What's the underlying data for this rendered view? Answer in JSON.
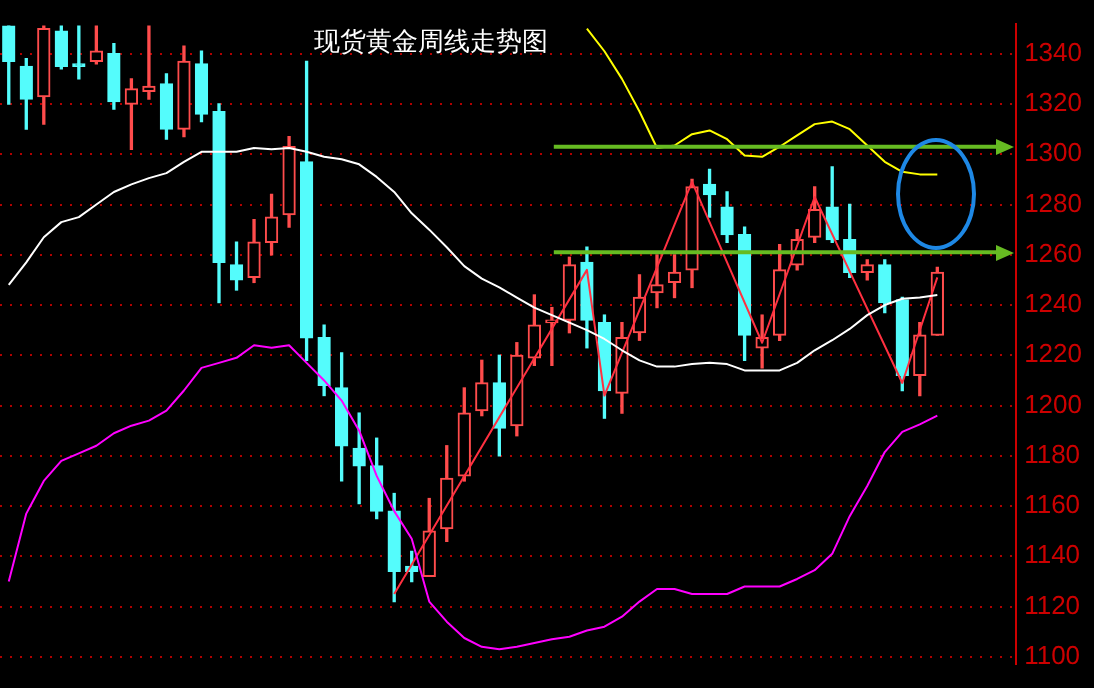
{
  "chart_data": {
    "type": "candlestick",
    "title": "现货黄金周线走势图",
    "categories": [
      null,
      null,
      null,
      null,
      null,
      null,
      null,
      null,
      null,
      null,
      null,
      null,
      null,
      null,
      null,
      null,
      null,
      null,
      null,
      null,
      null,
      null,
      null,
      null,
      null,
      null,
      null,
      null,
      null,
      null,
      null,
      null,
      null,
      null,
      null,
      null,
      null,
      null,
      null,
      null,
      null,
      null,
      null,
      null,
      null,
      null,
      null,
      null,
      null,
      null,
      null,
      null,
      null,
      null,
      null,
      null,
      null,
      null
    ],
    "ohlc": [
      [
        1351,
        1351,
        1320,
        1337
      ],
      [
        1335,
        1338,
        1310,
        1322
      ],
      [
        1323,
        1351,
        1312,
        1350
      ],
      [
        1349,
        1351,
        1334,
        1335
      ],
      [
        1336,
        1351,
        1330,
        1335
      ],
      [
        1337,
        1351,
        1336,
        1341
      ],
      [
        1340,
        1344,
        1318,
        1321
      ],
      [
        1320,
        1330,
        1302,
        1326
      ],
      [
        1325,
        1351,
        1322,
        1327
      ],
      [
        1328,
        1332,
        1306,
        1310
      ],
      [
        1310,
        1343,
        1307,
        1337
      ],
      [
        1336,
        1341,
        1313,
        1316
      ],
      [
        1317,
        1320,
        1241,
        1257
      ],
      [
        1256,
        1265,
        1246,
        1250
      ],
      [
        1251,
        1274,
        1249,
        1265
      ],
      [
        1265,
        1284,
        1260,
        1275
      ],
      [
        1276,
        1307,
        1271,
        1303
      ],
      [
        1297,
        1337,
        1218,
        1227
      ],
      [
        1227,
        1232,
        1204,
        1208
      ],
      [
        1207,
        1221,
        1170,
        1184
      ],
      [
        1183,
        1197,
        1161,
        1176
      ],
      [
        1176,
        1187,
        1155,
        1158
      ],
      [
        1158,
        1165,
        1122,
        1134
      ],
      [
        1136,
        1142,
        1130,
        1134
      ],
      [
        1132,
        1163,
        1132,
        1150
      ],
      [
        1151,
        1184,
        1146,
        1171
      ],
      [
        1172,
        1207,
        1170,
        1197
      ],
      [
        1198,
        1218,
        1196,
        1209
      ],
      [
        1209,
        1220,
        1180,
        1191
      ],
      [
        1192,
        1225,
        1188,
        1220
      ],
      [
        1219,
        1244,
        1216,
        1232
      ],
      [
        1233,
        1239,
        1216,
        1234
      ],
      [
        1234,
        1259,
        1229,
        1256
      ],
      [
        1257,
        1263,
        1223,
        1234
      ],
      [
        1233,
        1236,
        1195,
        1206
      ],
      [
        1205,
        1233,
        1197,
        1227
      ],
      [
        1229,
        1252,
        1226,
        1243
      ],
      [
        1245,
        1260,
        1239,
        1248
      ],
      [
        1249,
        1260,
        1243,
        1253
      ],
      [
        1254,
        1290,
        1247,
        1287
      ],
      [
        1288,
        1294,
        1275,
        1284
      ],
      [
        1279,
        1285,
        1265,
        1268
      ],
      [
        1268,
        1271,
        1218,
        1228
      ],
      [
        1223,
        1236,
        1215,
        1227
      ],
      [
        1228,
        1264,
        1226,
        1254
      ],
      [
        1256,
        1270,
        1254,
        1266
      ],
      [
        1267,
        1287,
        1265,
        1278
      ],
      [
        1279,
        1295,
        1265,
        1266
      ],
      [
        1266,
        1280,
        1251,
        1253
      ],
      [
        1253,
        1258,
        1250,
        1256
      ],
      [
        1256,
        1258,
        1237,
        1241
      ],
      [
        1242,
        1243,
        1206,
        1212
      ],
      [
        1212,
        1233,
        1204,
        1228
      ],
      [
        1228,
        1255,
        1228,
        1253
      ],
      null,
      null,
      null,
      null
    ],
    "colors": [
      "#54fcfc",
      "#54fcfc",
      "#ff4c4c",
      "#54fcfc",
      "#54fcfc",
      "#ff4c4c",
      "#54fcfc",
      "#ff4c4c",
      "#ff4c4c",
      "#54fcfc",
      "#ff4c4c",
      "#54fcfc",
      "#54fcfc",
      "#54fcfc",
      "#ff4c4c",
      "#ff4c4c",
      "#ff4c4c",
      "#54fcfc",
      "#54fcfc",
      "#54fcfc",
      "#54fcfc",
      "#54fcfc",
      "#54fcfc",
      "#54fcfc",
      "#ff4c4c",
      "#ff4c4c",
      "#ff4c4c",
      "#ff4c4c",
      "#54fcfc",
      "#ff4c4c",
      "#ff4c4c",
      "#ff4c4c",
      "#ff4c4c",
      "#54fcfc",
      "#54fcfc",
      "#ff4c4c",
      "#ff4c4c",
      "#ff4c4c",
      "#ff4c4c",
      "#ff4c4c",
      "#54fcfc",
      "#54fcfc",
      "#54fcfc",
      "#ff4c4c",
      "#ff4c4c",
      "#ff4c4c",
      "#ff4c4c",
      "#54fcfc",
      "#54fcfc",
      "#ff4c4c",
      "#54fcfc",
      "#54fcfc",
      "#ff4c4c",
      "#ff4c4c",
      null,
      null,
      null,
      null
    ],
    "series": [
      {
        "type": "line",
        "color": "#ffffff",
        "values": [
          1248,
          1257,
          1267,
          1273,
          1275,
          1280,
          1285,
          1288,
          1290.5,
          1292.5,
          1297,
          1301,
          1301,
          1301,
          1302.5,
          1302,
          1302.5,
          1301,
          1299,
          1298,
          1296,
          1291,
          1285,
          1276.5,
          1270,
          1263,
          1255.5,
          1250.5,
          1247,
          1243,
          1239,
          1236,
          1233,
          1230,
          1226.5,
          1222,
          1218,
          1215.5,
          1215.5,
          1216.5,
          1217,
          1216.5,
          1214,
          1214,
          1214,
          1217,
          1222,
          1226,
          1230.5,
          1236,
          1240,
          1242.5,
          1243,
          1244,
          null,
          null,
          null,
          null
        ]
      },
      {
        "type": "line",
        "color": "#ffff00",
        "values": [
          null,
          null,
          null,
          null,
          null,
          null,
          null,
          null,
          null,
          null,
          null,
          null,
          null,
          null,
          null,
          null,
          null,
          null,
          null,
          null,
          null,
          null,
          null,
          null,
          null,
          null,
          null,
          null,
          null,
          null,
          null,
          null,
          null,
          1350,
          1341,
          1330,
          1317,
          1302.5,
          1303.5,
          1308,
          1309.5,
          1306,
          1299.5,
          1299,
          1303,
          1307.5,
          1312,
          1313,
          1310,
          1303.5,
          1297,
          1293,
          1292,
          1292,
          null,
          null,
          null,
          null
        ]
      },
      {
        "type": "line",
        "color": "#ff00ff",
        "values": [
          1130,
          1157,
          1170,
          1178,
          1181,
          1184,
          1189,
          1192,
          1194,
          1198,
          1206,
          1215,
          1217,
          1219,
          1224,
          1223,
          1224,
          1217,
          1210,
          1202,
          1190,
          1172,
          1158,
          1147,
          1122,
          1114,
          1107.5,
          1104,
          1103,
          1104,
          1105.5,
          1107,
          1108,
          1110.5,
          1112,
          1116,
          1122,
          1127,
          1127,
          1125,
          1125,
          1125,
          1128,
          1128,
          1128,
          1131,
          1134.5,
          1141,
          1156,
          1168,
          1181.5,
          1189.5,
          1192.5,
          1196,
          null,
          null,
          null,
          null
        ]
      },
      {
        "type": "line",
        "color": "#ff3040",
        "values": [
          null,
          null,
          null,
          null,
          null,
          null,
          null,
          null,
          null,
          null,
          null,
          null,
          null,
          null,
          null,
          null,
          null,
          null,
          null,
          null,
          null,
          null,
          1125,
          null,
          null,
          null,
          null,
          null,
          null,
          null,
          null,
          null,
          null,
          1254,
          1204,
          null,
          null,
          null,
          null,
          1289,
          null,
          null,
          null,
          1225,
          null,
          null,
          1283,
          null,
          null,
          null,
          null,
          1209,
          null,
          1251,
          null,
          null,
          null,
          null
        ]
      }
    ],
    "ref_lines": [
      {
        "axis": "y",
        "value": 1303,
        "color": "#66bb22"
      },
      {
        "axis": "y",
        "value": 1261,
        "color": "#66bb22"
      }
    ],
    "ylim": [
      1097,
      1352
    ],
    "yticks": [
      1100,
      1120,
      1140,
      1160,
      1180,
      1200,
      1220,
      1240,
      1260,
      1280,
      1300,
      1320,
      1340
    ],
    "grid": "y",
    "tick_labels": "y"
  }
}
